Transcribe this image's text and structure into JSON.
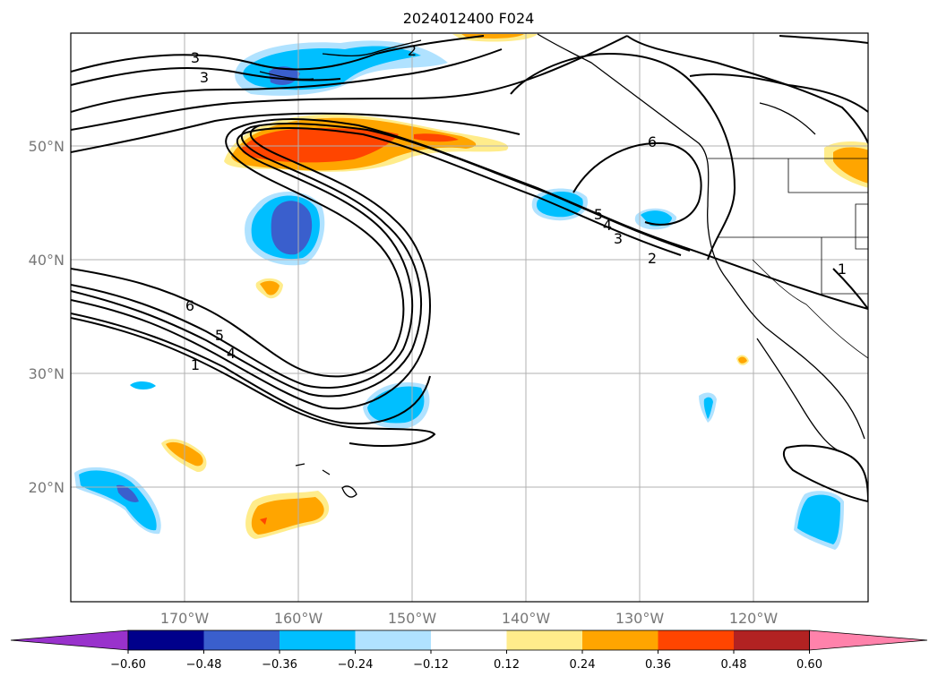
{
  "title": "2024012400 F024",
  "lon_labels": [
    "170°W",
    "160°W",
    "150°W",
    "140°W",
    "130°W",
    "120°W"
  ],
  "lat_labels": [
    "50°N",
    "40°N",
    "30°N",
    "20°N"
  ],
  "colorbar": {
    "ticks": [
      "−0.60",
      "−0.48",
      "−0.36",
      "−0.24",
      "−0.12",
      "0.12",
      "0.24",
      "0.36",
      "0.48",
      "0.60"
    ],
    "colors": [
      "#9932cc",
      "#00008b",
      "#3a5fcd",
      "#00bfff",
      "#b0e2ff",
      "#ffffff",
      "#ffec8b",
      "#ffa500",
      "#ff4500",
      "#b22222",
      "#ff82ab"
    ]
  },
  "contour_labels": [
    "3",
    "3",
    "2",
    "6",
    "5",
    "4",
    "3",
    "2",
    "6",
    "5",
    "4",
    "1",
    "1"
  ],
  "colors": {
    "line": "#000000",
    "grid": "#b0b0b0",
    "tick_text": "#777777"
  }
}
